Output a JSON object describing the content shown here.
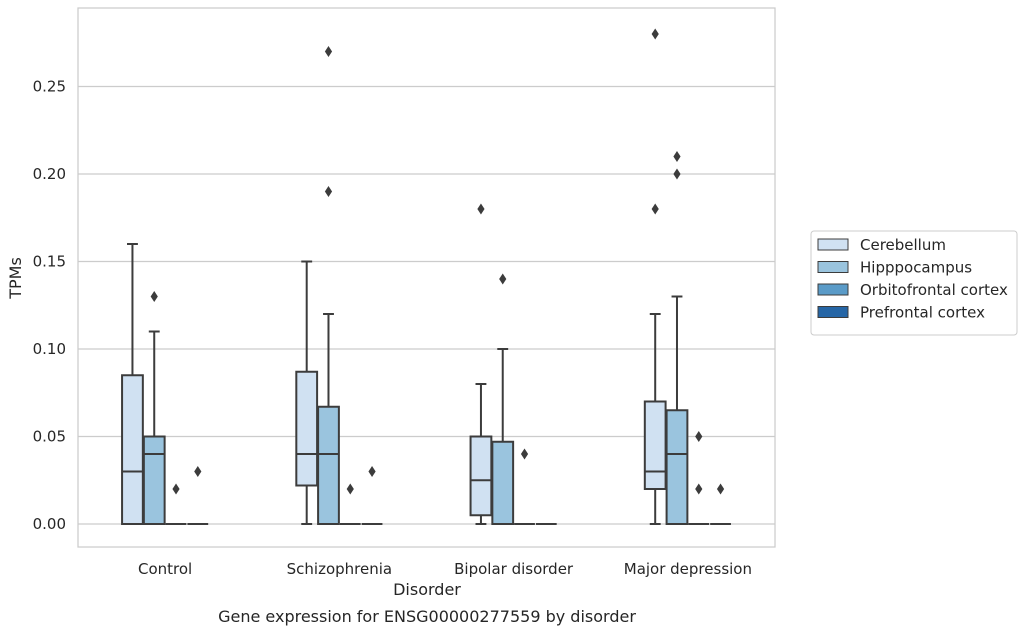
{
  "chart_data": {
    "type": "box",
    "title": "",
    "caption": "Gene expression for ENSG00000277559 by disorder",
    "xlabel": "Disorder",
    "ylabel": "TPMs",
    "ylim": [
      -0.014,
      0.295
    ],
    "yticks": [
      0.0,
      0.05,
      0.1,
      0.15,
      0.2,
      0.25
    ],
    "ytick_labels": [
      "0.00",
      "0.05",
      "0.10",
      "0.15",
      "0.20",
      "0.25"
    ],
    "grid": "horizontal",
    "legend_position": "right",
    "categories": [
      "Control",
      "Schizophrenia",
      "Bipolar disorder",
      "Major depression"
    ],
    "series": [
      {
        "name": "Cerebellum",
        "color": "#d0e1f2",
        "boxes": [
          {
            "whislo": 0.0,
            "q1": 0.0,
            "med": 0.03,
            "q3": 0.085,
            "whishi": 0.16,
            "fliers": []
          },
          {
            "whislo": 0.0,
            "q1": 0.022,
            "med": 0.04,
            "q3": 0.087,
            "whishi": 0.15,
            "fliers": []
          },
          {
            "whislo": 0.0,
            "q1": 0.005,
            "med": 0.025,
            "q3": 0.05,
            "whishi": 0.08,
            "fliers": [
              0.18
            ]
          },
          {
            "whislo": 0.0,
            "q1": 0.02,
            "med": 0.03,
            "q3": 0.07,
            "whishi": 0.12,
            "fliers": [
              0.18,
              0.28
            ]
          }
        ]
      },
      {
        "name": "Hipppocampus",
        "color": "#9ac4de",
        "boxes": [
          {
            "whislo": 0.0,
            "q1": 0.0,
            "med": 0.04,
            "q3": 0.05,
            "whishi": 0.11,
            "fliers": [
              0.13
            ]
          },
          {
            "whislo": 0.0,
            "q1": 0.0,
            "med": 0.04,
            "q3": 0.067,
            "whishi": 0.12,
            "fliers": [
              0.19,
              0.27
            ]
          },
          {
            "whislo": 0.0,
            "q1": 0.0,
            "med": 0.0,
            "q3": 0.047,
            "whishi": 0.1,
            "fliers": [
              0.14
            ]
          },
          {
            "whislo": 0.0,
            "q1": 0.0,
            "med": 0.04,
            "q3": 0.065,
            "whishi": 0.13,
            "fliers": [
              0.2,
              0.21
            ]
          }
        ]
      },
      {
        "name": "Orbitofrontal cortex",
        "color": "#5a9bc8",
        "boxes": [
          {
            "whislo": 0.0,
            "q1": 0.0,
            "med": 0.0,
            "q3": 0.0,
            "whishi": 0.0,
            "fliers": [
              0.02
            ]
          },
          {
            "whislo": 0.0,
            "q1": 0.0,
            "med": 0.0,
            "q3": 0.0,
            "whishi": 0.0,
            "fliers": [
              0.02
            ]
          },
          {
            "whislo": 0.0,
            "q1": 0.0,
            "med": 0.0,
            "q3": 0.0,
            "whishi": 0.0,
            "fliers": [
              0.04
            ]
          },
          {
            "whislo": 0.0,
            "q1": 0.0,
            "med": 0.0,
            "q3": 0.0,
            "whishi": 0.0,
            "fliers": [
              0.02,
              0.05
            ]
          }
        ]
      },
      {
        "name": "Prefrontal cortex",
        "color": "#2666a6",
        "boxes": [
          {
            "whislo": 0.0,
            "q1": 0.0,
            "med": 0.0,
            "q3": 0.0,
            "whishi": 0.0,
            "fliers": [
              0.03
            ]
          },
          {
            "whislo": 0.0,
            "q1": 0.0,
            "med": 0.0,
            "q3": 0.0,
            "whishi": 0.0,
            "fliers": [
              0.03
            ]
          },
          {
            "whislo": 0.0,
            "q1": 0.0,
            "med": 0.0,
            "q3": 0.0,
            "whishi": 0.0,
            "fliers": []
          },
          {
            "whislo": 0.0,
            "q1": 0.0,
            "med": 0.0,
            "q3": 0.0,
            "whishi": 0.0,
            "fliers": [
              0.02
            ]
          }
        ]
      }
    ]
  }
}
